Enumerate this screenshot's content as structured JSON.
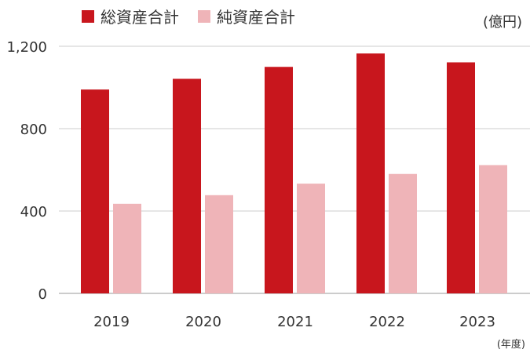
{
  "chart_data": {
    "type": "bar",
    "categories": [
      "2019",
      "2020",
      "2021",
      "2022",
      "2023"
    ],
    "series": [
      {
        "name": "総資産合計",
        "values": [
          990,
          1042,
          1100,
          1165,
          1122
        ],
        "color": "#c8161d"
      },
      {
        "name": "純資産合計",
        "values": [
          435,
          477,
          533,
          580,
          623
        ],
        "color": "#efb4b8"
      }
    ],
    "ylim": [
      0,
      1200
    ],
    "yticks": [
      "0",
      "400",
      "800",
      "1,200"
    ],
    "unit_label": "(億円)",
    "x_unit_label": "(年度)",
    "legend_position": "top-left",
    "grid": true
  }
}
